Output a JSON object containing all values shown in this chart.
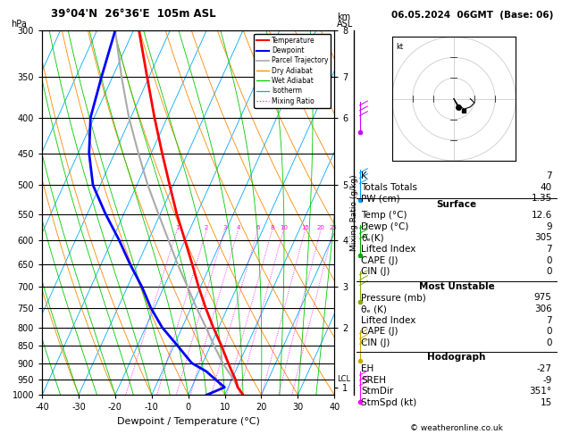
{
  "title_left": "39°04'N  26°36'E  105m ASL",
  "title_right": "06.05.2024  06GMT  (Base: 06)",
  "xlabel": "Dewpoint / Temperature (°C)",
  "pressure_levels": [
    300,
    350,
    400,
    450,
    500,
    550,
    600,
    650,
    700,
    750,
    800,
    850,
    900,
    950,
    1000
  ],
  "temp_xlim": [
    -40,
    40
  ],
  "temp_xticks": [
    -40,
    -30,
    -20,
    -10,
    0,
    10,
    20,
    30,
    40
  ],
  "km_asl_ticks": [
    1,
    2,
    3,
    4,
    5,
    6,
    7,
    8
  ],
  "km_asl_pressures": [
    975,
    800,
    700,
    600,
    500,
    400,
    350,
    300
  ],
  "lcl_pressure": 950,
  "mixing_ratio_labels": [
    1,
    2,
    3,
    4,
    6,
    8,
    10,
    15,
    20,
    25
  ],
  "temp_profile": {
    "pressure": [
      1000,
      975,
      950,
      925,
      900,
      850,
      800,
      750,
      700,
      650,
      600,
      550,
      500,
      450,
      400,
      350,
      300
    ],
    "temp": [
      15.0,
      12.6,
      11.0,
      9.0,
      7.0,
      3.0,
      -1.5,
      -6.0,
      -10.5,
      -15.0,
      -20.0,
      -25.5,
      -31.0,
      -37.0,
      -43.5,
      -50.5,
      -58.5
    ],
    "color": "#ff0000",
    "linewidth": 2.0
  },
  "dewpoint_profile": {
    "pressure": [
      1000,
      975,
      950,
      925,
      900,
      850,
      800,
      750,
      700,
      650,
      600,
      550,
      500,
      450,
      400,
      350,
      300
    ],
    "dewpoint": [
      5.0,
      9.0,
      5.5,
      2.0,
      -3.0,
      -9.0,
      -15.5,
      -21.0,
      -26.0,
      -32.0,
      -38.0,
      -45.0,
      -52.0,
      -57.0,
      -61.0,
      -63.0,
      -65.0
    ],
    "color": "#0000ff",
    "linewidth": 2.0
  },
  "parcel_profile": {
    "pressure": [
      975,
      950,
      925,
      900,
      850,
      800,
      750,
      700,
      650,
      600,
      550,
      500,
      450,
      400,
      350,
      300
    ],
    "temp": [
      12.6,
      10.5,
      8.0,
      5.5,
      1.0,
      -3.5,
      -8.5,
      -13.5,
      -19.0,
      -24.5,
      -30.5,
      -37.0,
      -43.5,
      -50.5,
      -57.5,
      -65.0
    ],
    "color": "#aaaaaa",
    "linewidth": 1.5
  },
  "isotherm_color": "#00aaff",
  "dry_adiabat_color": "#ff8800",
  "wet_adiabat_color": "#00cc00",
  "mixing_ratio_color": "#ff00ff",
  "background_color": "#ffffff",
  "wind_barbs": [
    {
      "pressure": 975,
      "color": "#ff00ff",
      "speed": 15,
      "direction": 351
    },
    {
      "pressure": 400,
      "color": "#cc00ff",
      "speed": 20,
      "direction": 270
    },
    {
      "pressure": 500,
      "color": "#0099ff",
      "speed": 10,
      "direction": 250
    },
    {
      "pressure": 600,
      "color": "#00aa00",
      "speed": 8,
      "direction": 200
    },
    {
      "pressure": 700,
      "color": "#88aa00",
      "speed": 5,
      "direction": 180
    },
    {
      "pressure": 850,
      "color": "#ccaa00",
      "speed": 5,
      "direction": 160
    }
  ],
  "hodograph": {
    "u": [
      0,
      2,
      5,
      8,
      10,
      8
    ],
    "v": [
      0,
      -3,
      -5,
      -4,
      -2,
      0
    ],
    "storm_u": 2,
    "storm_v": -4,
    "storm2_u": 5,
    "storm2_v": -6
  },
  "info": {
    "K": "7",
    "Totals Totals": "40",
    "PW (cm)": "1.35",
    "surf_temp": "12.6",
    "surf_dewp": "9",
    "surf_theta_e": "305",
    "surf_li": "7",
    "surf_cape": "0",
    "surf_cin": "0",
    "mu_pres": "975",
    "mu_theta_e": "306",
    "mu_li": "7",
    "mu_cape": "0",
    "mu_cin": "0",
    "eh": "-27",
    "sreh": "-9",
    "stmdir": "351°",
    "stmspd": "15"
  }
}
